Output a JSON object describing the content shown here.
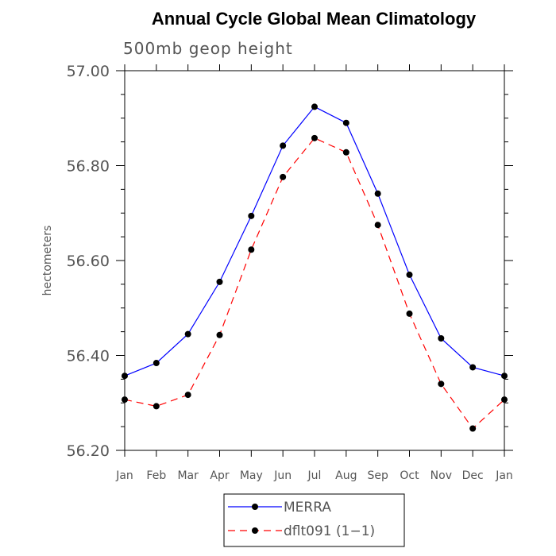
{
  "chart_data": {
    "type": "line",
    "title": "Annual Cycle Global Mean Climatology",
    "subtitle": "500mb geop height",
    "xlabel": "",
    "ylabel": "hectometers",
    "categories": [
      "Jan",
      "Feb",
      "Mar",
      "Apr",
      "May",
      "Jun",
      "Jul",
      "Aug",
      "Sep",
      "Oct",
      "Nov",
      "Dec",
      "Jan"
    ],
    "ylim": [
      56.2,
      57.0
    ],
    "yticks": [
      "56.20",
      "56.40",
      "56.60",
      "56.80",
      "57.00"
    ],
    "legend_position": "bottom",
    "grid": false,
    "series": [
      {
        "name": "MERRA",
        "color": "#0000ff",
        "dash": "solid",
        "values": [
          56.357,
          56.384,
          56.445,
          56.555,
          56.694,
          56.842,
          56.924,
          56.89,
          56.741,
          56.57,
          56.436,
          56.375,
          56.357
        ]
      },
      {
        "name": "dflt091 (1−1)",
        "color": "#ff0000",
        "dash": "dashed",
        "values": [
          56.307,
          56.293,
          56.317,
          56.443,
          56.623,
          56.776,
          56.858,
          56.828,
          56.675,
          56.488,
          56.34,
          56.246,
          56.307
        ]
      }
    ]
  }
}
